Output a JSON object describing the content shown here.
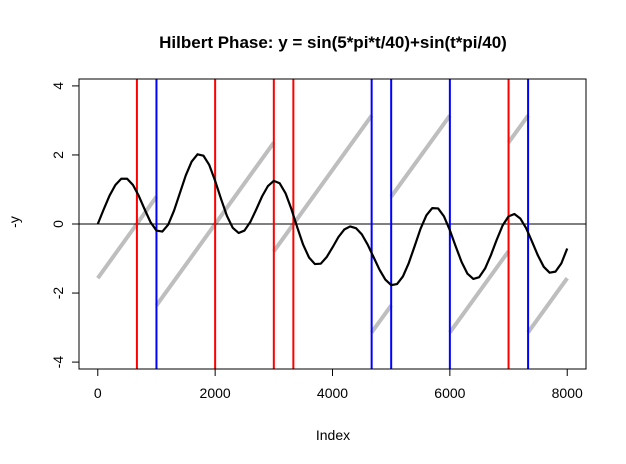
{
  "chart_data": {
    "type": "line",
    "title": "Hilbert Phase: y = sin(5*pi*t/40)+sin(t*pi/40)",
    "xlabel": "Index",
    "ylabel": "-y",
    "xlim": [
      -320,
      8320
    ],
    "ylim": [
      -4.2,
      4.2
    ],
    "x_ticks": [
      0,
      2000,
      4000,
      6000,
      8000
    ],
    "y_ticks": [
      -4,
      -2,
      0,
      2,
      4
    ],
    "x_tick_labels": [
      "0",
      "2000",
      "4000",
      "6000",
      "8000"
    ],
    "y_tick_labels": [
      "-4",
      "-2",
      "0",
      "2",
      "4"
    ],
    "grid": false,
    "legend": "none",
    "horizontal_line": 0,
    "series": [
      {
        "role": "signal",
        "color": "#000000",
        "x": [
          0,
          100,
          200,
          300,
          400,
          500,
          600,
          700,
          800,
          900,
          1000,
          1100,
          1200,
          1300,
          1400,
          1500,
          1600,
          1700,
          1800,
          1900,
          2000,
          2100,
          2200,
          2300,
          2400,
          2500,
          2600,
          2700,
          2800,
          2900,
          3000,
          3100,
          3200,
          3300,
          3400,
          3500,
          3600,
          3700,
          3800,
          3900,
          4000,
          4100,
          4200,
          4300,
          4400,
          4500,
          4600,
          4700,
          4800,
          4900,
          5000,
          5100,
          5200,
          5300,
          5400,
          5500,
          5600,
          5700,
          5800,
          5900,
          6000,
          6100,
          6200,
          6300,
          6400,
          6500,
          6600,
          6700,
          6800,
          6900,
          7000,
          7100,
          7200,
          7300,
          7400,
          7500,
          7600,
          7700,
          7800,
          7900,
          8000
        ],
        "y": [
          0,
          0.42,
          0.82,
          1.13,
          1.31,
          1.31,
          1.13,
          0.81,
          0.42,
          0.05,
          -0.19,
          -0.22,
          -0.02,
          0.39,
          0.9,
          1.41,
          1.81,
          2.02,
          1.98,
          1.71,
          1.25,
          0.73,
          0.24,
          -0.11,
          -0.26,
          -0.19,
          0.06,
          0.42,
          0.8,
          1.1,
          1.25,
          1.18,
          0.89,
          0.43,
          -0.1,
          -0.6,
          -0.97,
          -1.16,
          -1.15,
          -0.96,
          -0.68,
          -0.38,
          -0.16,
          -0.07,
          -0.12,
          -0.3,
          -0.6,
          -0.96,
          -1.32,
          -1.61,
          -1.77,
          -1.74,
          -1.52,
          -1.13,
          -0.64,
          -0.14,
          0.25,
          0.46,
          0.45,
          0.22,
          -0.18,
          -0.65,
          -1.1,
          -1.44,
          -1.59,
          -1.54,
          -1.29,
          -0.9,
          -0.45,
          -0.04,
          0.22,
          0.29,
          0.16,
          -0.12,
          -0.51,
          -0.91,
          -1.24,
          -1.41,
          -1.38,
          -1.14,
          -0.71
        ]
      },
      {
        "role": "phase",
        "color": "#bebebe",
        "segments": [
          {
            "x": [
              0,
              1000
            ],
            "y": [
              -1.57,
              0.79
            ]
          },
          {
            "x": [
              1000,
              3000
            ],
            "y": [
              -2.36,
              2.36
            ]
          },
          {
            "x": [
              3000,
              4667
            ],
            "y": [
              -0.79,
              3.14
            ]
          },
          {
            "x": [
              4667,
              5000
            ],
            "y": [
              -3.14,
              -2.36
            ]
          },
          {
            "x": [
              5000,
              6000
            ],
            "y": [
              0.79,
              3.14
            ]
          },
          {
            "x": [
              6000,
              7000
            ],
            "y": [
              -3.14,
              -0.79
            ]
          },
          {
            "x": [
              7000,
              7333
            ],
            "y": [
              2.36,
              3.14
            ]
          },
          {
            "x": [
              7333,
              8000
            ],
            "y": [
              -3.14,
              -1.57
            ]
          }
        ]
      }
    ],
    "vertical_lines": [
      {
        "x": 667,
        "color": "#ff0000"
      },
      {
        "x": 1000,
        "color": "#0000ff"
      },
      {
        "x": 2000,
        "color": "#ff0000"
      },
      {
        "x": 3000,
        "color": "#ff0000"
      },
      {
        "x": 3333,
        "color": "#ff0000"
      },
      {
        "x": 4667,
        "color": "#0000ff"
      },
      {
        "x": 5000,
        "color": "#0000ff"
      },
      {
        "x": 6000,
        "color": "#0000ff"
      },
      {
        "x": 7000,
        "color": "#ff0000"
      },
      {
        "x": 7333,
        "color": "#0000ff"
      }
    ]
  }
}
